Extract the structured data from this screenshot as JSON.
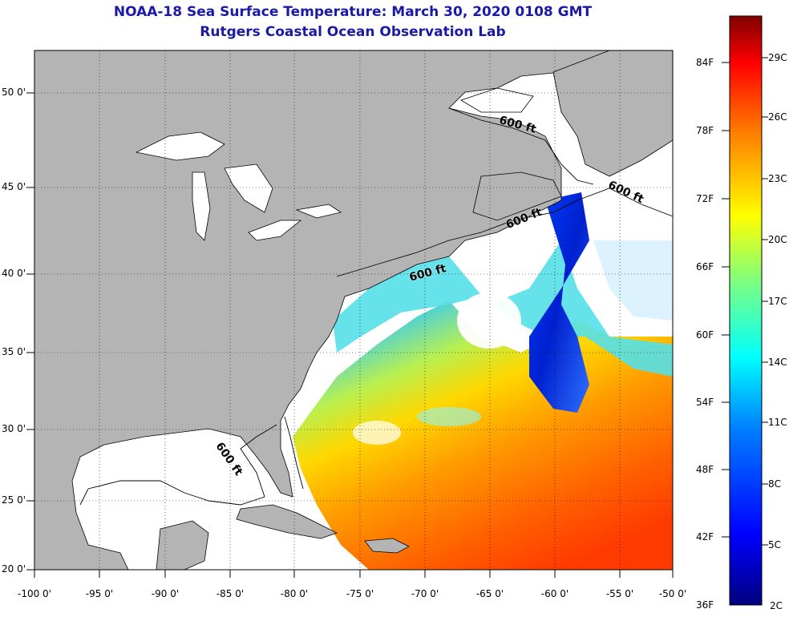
{
  "title": "NOAA-18 Sea Surface Temperature:  March 30, 2020 0108 GMT",
  "subtitle": "Rutgers Coastal Ocean Observation Lab",
  "lat_ticks": [
    "50 0'",
    "45 0'",
    "40 0'",
    "35 0'",
    "30 0'",
    "25 0'",
    "20 0'"
  ],
  "lon_ticks": [
    "-100 0'",
    "-95 0'",
    "-90 0'",
    "-85 0'",
    "-80 0'",
    "-75 0'",
    "-70 0'",
    "-65 0'",
    "-60 0'",
    "-55 0'",
    "-50 0'"
  ],
  "colorbar": {
    "fahrenheit": [
      "84F",
      "78F",
      "72F",
      "66F",
      "60F",
      "54F",
      "48F",
      "42F",
      "36F"
    ],
    "celsius": [
      "29C",
      "26C",
      "23C",
      "20C",
      "17C",
      "14C",
      "11C",
      "8C",
      "5C",
      "2C"
    ],
    "colors": [
      "#00007f",
      "#0000ff",
      "#007fff",
      "#00ffff",
      "#7fff7f",
      "#ffff00",
      "#ff7f00",
      "#ff0000",
      "#7f0000"
    ]
  },
  "contour_labels": [
    "600 ft",
    "600 ft",
    "600 ft",
    "600 ft",
    "600 ft"
  ],
  "colors": {
    "land": "#b4b4b4",
    "ocean_nodata": "#ffffff",
    "title": "#1a1aa6"
  }
}
